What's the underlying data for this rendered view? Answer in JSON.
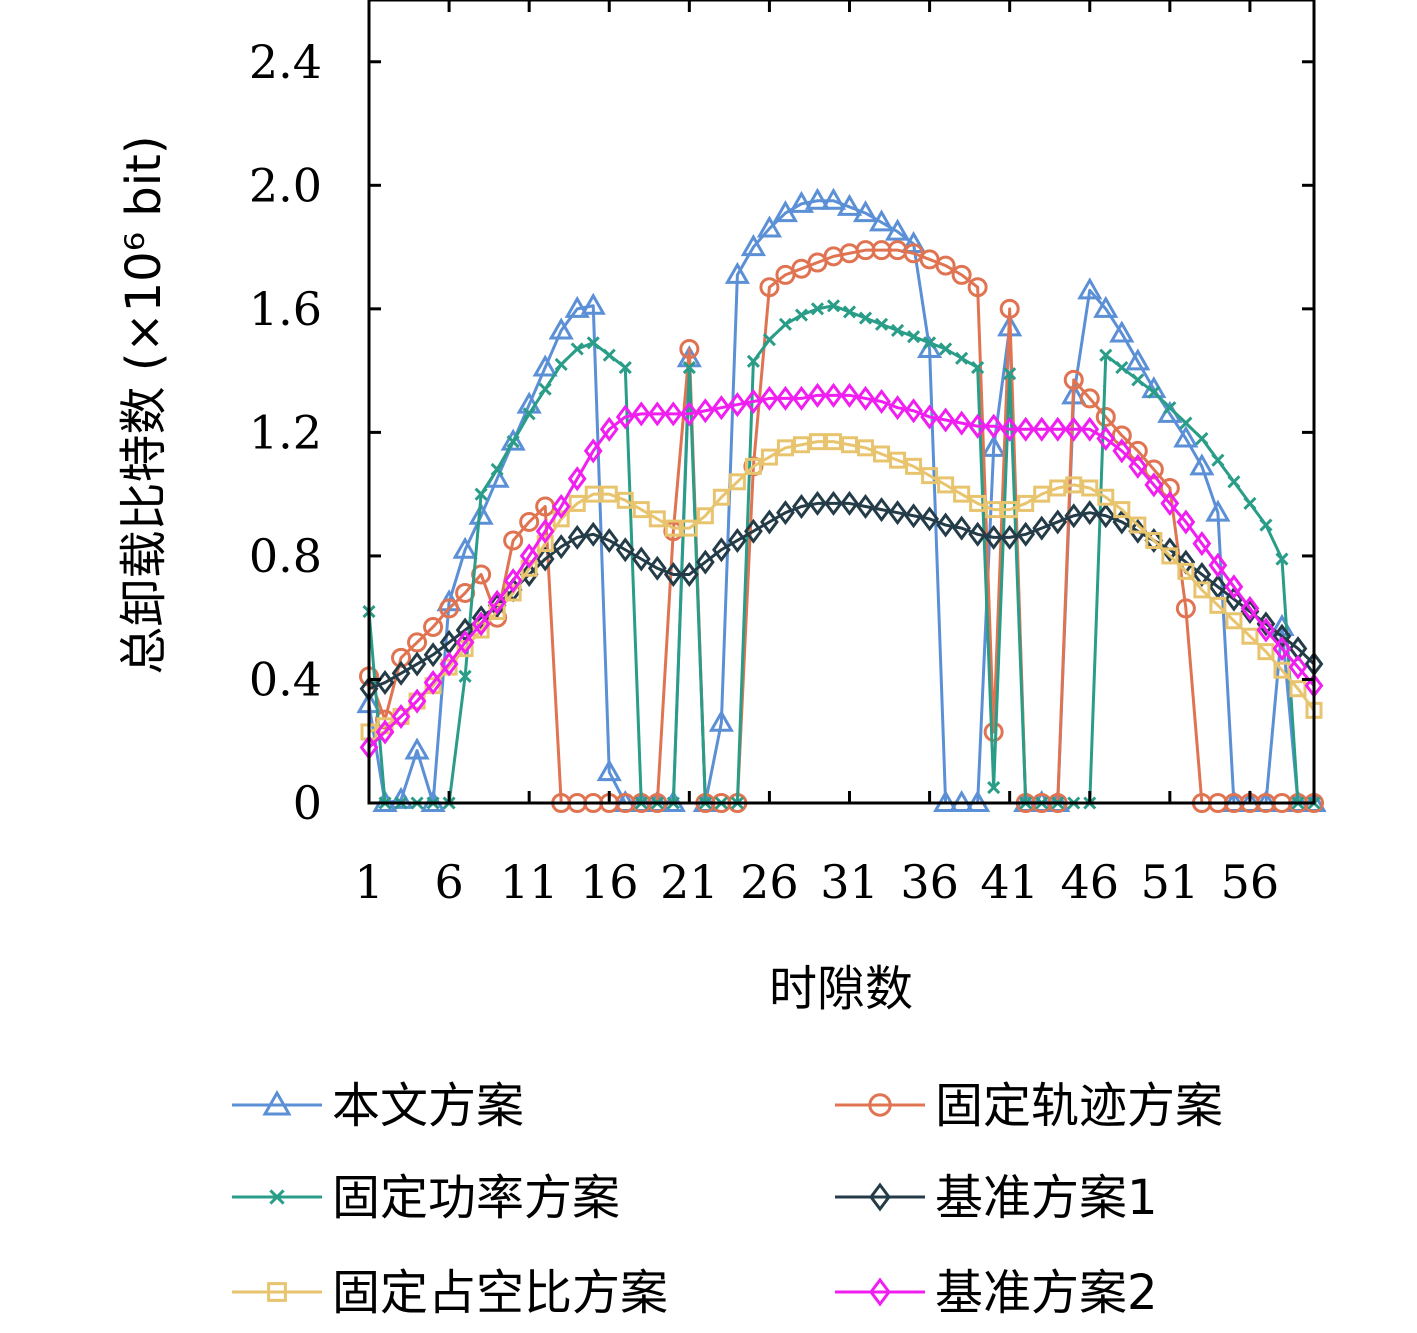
{
  "chart_data": {
    "type": "line",
    "title": "",
    "xlabel": "时隙数",
    "ylabel": "总卸载比特数 (×10⁶ bit)",
    "xlim": [
      1,
      60
    ],
    "ylim": [
      0,
      2.6
    ],
    "x_ticks": [
      1,
      6,
      11,
      16,
      21,
      26,
      31,
      36,
      41,
      46,
      51,
      56
    ],
    "x_tick_labels": [
      "1",
      "6",
      "11",
      "16",
      "21",
      "26",
      "31",
      "36",
      "41",
      "46",
      "51",
      "56"
    ],
    "y_ticks": [
      0,
      0.4,
      0.8,
      1.2,
      1.6,
      2.0,
      2.4
    ],
    "y_tick_labels": [
      "0",
      "0.4",
      "0.8",
      "1.2",
      "1.6",
      "2.0",
      "2.4"
    ],
    "grid": false,
    "legend_position": "bottom",
    "x": [
      1,
      2,
      3,
      4,
      5,
      6,
      7,
      8,
      9,
      10,
      11,
      12,
      13,
      14,
      15,
      16,
      17,
      18,
      19,
      20,
      21,
      22,
      23,
      24,
      25,
      26,
      27,
      28,
      29,
      30,
      31,
      32,
      33,
      34,
      35,
      36,
      37,
      38,
      39,
      40,
      41,
      42,
      43,
      44,
      45,
      46,
      47,
      48,
      49,
      50,
      51,
      52,
      53,
      54,
      55,
      56,
      57,
      58,
      59,
      60
    ],
    "series": [
      {
        "name": "本文方案",
        "color": "#5b8fd6",
        "marker": "triangle",
        "values": [
          0.32,
          0.0,
          0.01,
          0.17,
          0.0,
          0.65,
          0.82,
          0.93,
          1.05,
          1.17,
          1.29,
          1.41,
          1.53,
          1.6,
          1.61,
          0.1,
          0.0,
          0.0,
          0.0,
          0.0,
          1.44,
          0.0,
          0.26,
          1.71,
          1.8,
          1.86,
          1.91,
          1.94,
          1.95,
          1.95,
          1.93,
          1.91,
          1.88,
          1.85,
          1.81,
          1.47,
          0.0,
          0.0,
          0.0,
          1.15,
          1.54,
          0.0,
          0.0,
          0.0,
          1.32,
          1.66,
          1.6,
          1.52,
          1.43,
          1.34,
          1.26,
          1.18,
          1.09,
          0.94,
          0.0,
          0.0,
          0.0,
          0.57,
          0.0,
          0.0
        ]
      },
      {
        "name": "固定轨迹方案",
        "color": "#e07452",
        "marker": "circle",
        "values": [
          0.41,
          0.27,
          0.47,
          0.52,
          0.57,
          0.63,
          0.68,
          0.74,
          0.6,
          0.85,
          0.91,
          0.96,
          0.0,
          0.0,
          0.0,
          0.0,
          0.0,
          0.0,
          0.0,
          0.88,
          1.47,
          0.0,
          0.0,
          0.0,
          1.09,
          1.67,
          1.71,
          1.73,
          1.75,
          1.77,
          1.78,
          1.79,
          1.79,
          1.79,
          1.78,
          1.76,
          1.74,
          1.71,
          1.67,
          0.23,
          1.6,
          0.0,
          0.0,
          0.0,
          1.37,
          1.31,
          1.25,
          1.19,
          1.14,
          1.08,
          1.02,
          0.63,
          0.0,
          0.0,
          0.0,
          0.0,
          0.0,
          0.0,
          0.0,
          0.0
        ]
      },
      {
        "name": "固定功率方案",
        "color": "#2a9d88",
        "marker": "x",
        "values": [
          0.62,
          0.0,
          0.0,
          0.0,
          0.0,
          0.0,
          0.41,
          1.0,
          1.08,
          1.17,
          1.26,
          1.34,
          1.42,
          1.47,
          1.49,
          1.45,
          1.41,
          0.0,
          0.0,
          0.0,
          1.41,
          0.0,
          0.0,
          0.0,
          1.43,
          1.5,
          1.55,
          1.58,
          1.6,
          1.61,
          1.59,
          1.57,
          1.55,
          1.53,
          1.51,
          1.49,
          1.47,
          1.44,
          1.41,
          0.05,
          1.39,
          0.0,
          0.0,
          0.0,
          0.0,
          0.0,
          1.45,
          1.41,
          1.37,
          1.33,
          1.28,
          1.23,
          1.18,
          1.11,
          1.04,
          0.97,
          0.9,
          0.79,
          0.0,
          0.0
        ]
      },
      {
        "name": "基准方案1",
        "color": "#243c48",
        "marker": "diamond",
        "values": [
          0.37,
          0.39,
          0.42,
          0.45,
          0.48,
          0.52,
          0.56,
          0.6,
          0.64,
          0.69,
          0.74,
          0.79,
          0.83,
          0.86,
          0.87,
          0.85,
          0.82,
          0.79,
          0.76,
          0.74,
          0.74,
          0.78,
          0.82,
          0.85,
          0.88,
          0.91,
          0.94,
          0.96,
          0.97,
          0.97,
          0.97,
          0.96,
          0.95,
          0.94,
          0.93,
          0.92,
          0.9,
          0.89,
          0.87,
          0.86,
          0.86,
          0.87,
          0.89,
          0.91,
          0.93,
          0.94,
          0.93,
          0.91,
          0.88,
          0.85,
          0.82,
          0.78,
          0.74,
          0.7,
          0.66,
          0.62,
          0.58,
          0.54,
          0.5,
          0.45
        ]
      },
      {
        "name": "固定占空比方案",
        "color": "#e8c46e",
        "marker": "square",
        "values": [
          0.23,
          0.25,
          0.28,
          0.33,
          0.38,
          0.44,
          0.5,
          0.56,
          0.62,
          0.68,
          0.76,
          0.84,
          0.92,
          0.97,
          1.0,
          1.0,
          0.98,
          0.95,
          0.92,
          0.89,
          0.89,
          0.93,
          0.99,
          1.04,
          1.09,
          1.12,
          1.15,
          1.16,
          1.17,
          1.17,
          1.16,
          1.15,
          1.13,
          1.11,
          1.09,
          1.06,
          1.03,
          1.0,
          0.97,
          0.95,
          0.95,
          0.97,
          1.0,
          1.02,
          1.03,
          1.02,
          0.99,
          0.95,
          0.9,
          0.85,
          0.8,
          0.75,
          0.69,
          0.64,
          0.59,
          0.54,
          0.49,
          0.43,
          0.37,
          0.3
        ]
      },
      {
        "name": "基准方案2",
        "color": "#f01ef0",
        "marker": "diamond",
        "values": [
          0.18,
          0.23,
          0.28,
          0.33,
          0.39,
          0.45,
          0.52,
          0.58,
          0.65,
          0.72,
          0.8,
          0.88,
          0.96,
          1.05,
          1.14,
          1.21,
          1.25,
          1.26,
          1.26,
          1.26,
          1.26,
          1.27,
          1.28,
          1.29,
          1.3,
          1.31,
          1.31,
          1.31,
          1.32,
          1.32,
          1.32,
          1.31,
          1.3,
          1.28,
          1.27,
          1.25,
          1.24,
          1.23,
          1.22,
          1.22,
          1.21,
          1.21,
          1.21,
          1.21,
          1.21,
          1.21,
          1.18,
          1.14,
          1.09,
          1.03,
          0.97,
          0.91,
          0.84,
          0.77,
          0.7,
          0.63,
          0.56,
          0.5,
          0.44,
          0.38
        ]
      }
    ]
  }
}
